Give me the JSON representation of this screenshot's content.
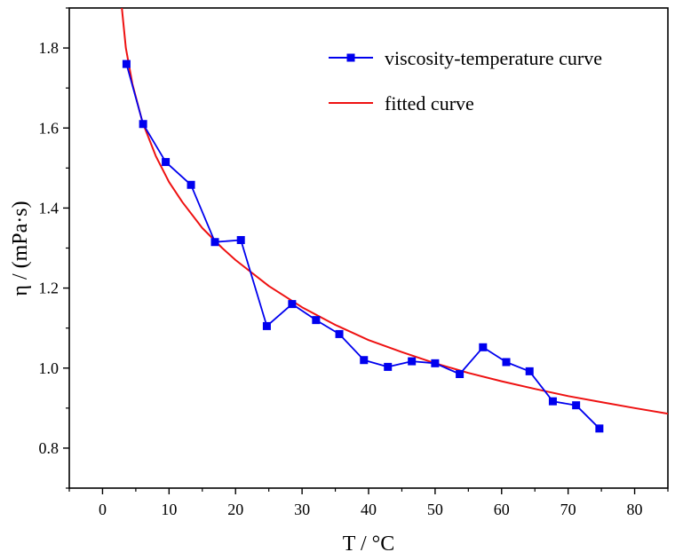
{
  "chart_data": {
    "type": "line",
    "title": "",
    "xlabel": "T / °C",
    "ylabel": "η / (mPa·s)",
    "xlim": [
      -5,
      85
    ],
    "ylim": [
      0.7,
      1.9
    ],
    "xticks": [
      0,
      10,
      20,
      30,
      40,
      50,
      60,
      70,
      80
    ],
    "yticks": [
      0.8,
      1.0,
      1.2,
      1.4,
      1.6,
      1.8
    ],
    "xtick_labels": [
      "0",
      "10",
      "20",
      "30",
      "40",
      "50",
      "60",
      "70",
      "80"
    ],
    "ytick_labels": [
      "0.8",
      "1.0",
      "1.2",
      "1.4",
      "1.6",
      "1.8"
    ],
    "legend_position": "top-right",
    "series": [
      {
        "name": "viscosity-temperature curve",
        "style": "line-square-markers",
        "color": "#0000ee",
        "x": [
          3.6,
          6.1,
          9.5,
          13.3,
          16.9,
          20.8,
          24.7,
          28.5,
          32.1,
          35.6,
          39.3,
          42.9,
          46.5,
          50.0,
          53.7,
          57.2,
          60.7,
          64.2,
          67.7,
          71.2,
          74.7
        ],
        "y": [
          1.76,
          1.61,
          1.515,
          1.458,
          1.315,
          1.32,
          1.105,
          1.16,
          1.12,
          1.085,
          1.02,
          1.003,
          1.017,
          1.012,
          0.985,
          1.052,
          1.015,
          0.992,
          0.917,
          0.907,
          0.849
        ]
      },
      {
        "name": "fitted curve",
        "style": "line",
        "color": "#ee1111",
        "x": [
          2.9,
          3.5,
          4.5,
          6,
          8,
          10,
          12,
          15,
          18,
          20,
          25,
          30,
          35,
          40,
          45,
          50,
          55,
          60,
          65,
          70,
          75,
          80,
          85
        ],
        "y": [
          1.9,
          1.8,
          1.71,
          1.615,
          1.53,
          1.465,
          1.415,
          1.35,
          1.3,
          1.27,
          1.205,
          1.152,
          1.108,
          1.07,
          1.04,
          1.012,
          0.988,
          0.967,
          0.948,
          0.93,
          0.915,
          0.9,
          0.886
        ]
      }
    ]
  }
}
